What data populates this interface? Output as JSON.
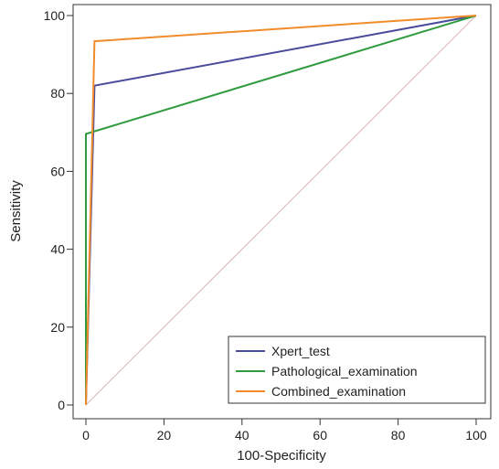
{
  "chart_data": {
    "type": "line",
    "xlabel": "100-Specificity",
    "ylabel": "Sensitivity",
    "xlim": [
      0,
      100
    ],
    "ylim": [
      0,
      100
    ],
    "xticks": [
      0,
      20,
      40,
      60,
      80,
      100
    ],
    "yticks": [
      0,
      20,
      40,
      60,
      80,
      100
    ],
    "grid": false,
    "legend_position": "bottom-right",
    "reference_line": {
      "x": [
        0,
        100
      ],
      "y": [
        0,
        100
      ],
      "color": "#d9b6b6"
    },
    "series": [
      {
        "name": "Xpert_test",
        "color": "#4b4b9b",
        "x": [
          0,
          2.2,
          100
        ],
        "y": [
          0,
          82,
          100
        ]
      },
      {
        "name": "Pathological_examination",
        "color": "#2e9b3e",
        "x": [
          0,
          0,
          100
        ],
        "y": [
          0,
          69.6,
          100
        ]
      },
      {
        "name": "Combined_examination",
        "color": "#f08c2c",
        "x": [
          0,
          2.2,
          100
        ],
        "y": [
          0,
          93.4,
          100
        ]
      }
    ]
  }
}
